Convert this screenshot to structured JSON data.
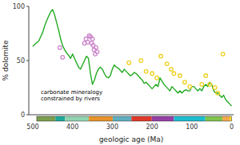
{
  "chart_data": {
    "type": "line",
    "xlabel": "geologic age (Ma)",
    "ylabel": "% dolomite",
    "xlim": [
      510,
      -5
    ],
    "ylim": [
      0,
      100
    ],
    "xticks": [
      500,
      400,
      300,
      200,
      100,
      0
    ],
    "yticks": [
      0,
      50,
      100
    ],
    "grid": false,
    "series": [
      {
        "type": "line",
        "color": "#22aa22",
        "x": [
          500,
          492,
          485,
          480,
          475,
          470,
          465,
          460,
          455,
          450,
          445,
          440,
          435,
          430,
          425,
          420,
          415,
          410,
          405,
          400,
          395,
          390,
          385,
          380,
          375,
          370,
          365,
          360,
          355,
          350,
          345,
          340,
          335,
          330,
          325,
          320,
          315,
          310,
          305,
          300,
          295,
          290,
          285,
          280,
          275,
          270,
          265,
          260,
          255,
          250,
          245,
          240,
          235,
          230,
          225,
          220,
          215,
          210,
          205,
          200,
          195,
          190,
          185,
          180,
          175,
          170,
          165,
          160,
          155,
          150,
          145,
          140,
          135,
          130,
          125,
          120,
          115,
          110,
          105,
          100,
          95,
          90,
          85,
          80,
          75,
          70,
          65,
          60,
          55,
          50,
          45,
          40,
          35,
          30,
          25,
          20,
          15,
          10,
          5,
          0
        ],
        "values": [
          63,
          66,
          68,
          72,
          76,
          82,
          87,
          91,
          95,
          97,
          92,
          85,
          78,
          70,
          64,
          60,
          57,
          55,
          52,
          56,
          52,
          48,
          44,
          42,
          46,
          50,
          54,
          52,
          38,
          28,
          32,
          38,
          42,
          44,
          42,
          38,
          35,
          34,
          36,
          42,
          46,
          44,
          43,
          41,
          39,
          42,
          40,
          38,
          36,
          37,
          39,
          38,
          36,
          34,
          32,
          29,
          30,
          28,
          26,
          24,
          26,
          28,
          26,
          34,
          31,
          28,
          26,
          24,
          22,
          26,
          24,
          22,
          20,
          22,
          20,
          22,
          23,
          22,
          22,
          26,
          26,
          24,
          22,
          24,
          22,
          26,
          28,
          26,
          30,
          28,
          22,
          20,
          20,
          18,
          16,
          18,
          14,
          12,
          10,
          8
        ]
      },
      {
        "type": "scatter",
        "marker": "ring",
        "color": "#cc88cc",
        "x": [
          432,
          425,
          370,
          366,
          362,
          358,
          355,
          352,
          350,
          348,
          346,
          343,
          341,
          338
        ],
        "values": [
          62,
          53,
          66,
          70,
          67,
          73,
          72,
          66,
          70,
          64,
          60,
          56,
          62,
          58
        ]
      },
      {
        "type": "scatter",
        "marker": "ring",
        "color": "#f0d020",
        "x": [
          258,
          228,
          215,
          200,
          188,
          178,
          163,
          152,
          145,
          130,
          118,
          105,
          75,
          65,
          55,
          42,
          35,
          22
        ],
        "values": [
          48,
          50,
          40,
          38,
          34,
          54,
          47,
          42,
          38,
          36,
          30,
          26,
          28,
          36,
          28,
          25,
          20,
          56
        ]
      }
    ],
    "annotations": [
      {
        "text": "carbonate mineralogy\nconstrained by rivers",
        "x": 480,
        "y": 18
      }
    ],
    "periods": [
      {
        "start": 490,
        "end": 443,
        "color": "#7d9e50"
      },
      {
        "start": 443,
        "end": 419,
        "color": "#1fa898"
      },
      {
        "start": 419,
        "end": 359,
        "color": "#92d4b2"
      },
      {
        "start": 359,
        "end": 299,
        "color": "#e8932b"
      },
      {
        "start": 299,
        "end": 252,
        "color": "#5fb0c0"
      },
      {
        "start": 252,
        "end": 201,
        "color": "#e0392a"
      },
      {
        "start": 201,
        "end": 145,
        "color": "#9540a6"
      },
      {
        "start": 145,
        "end": 66,
        "color": "#1dbdce"
      },
      {
        "start": 66,
        "end": 23,
        "color": "#82c44e"
      },
      {
        "start": 23,
        "end": 5,
        "color": "#f6a84e"
      },
      {
        "start": 5,
        "end": 0,
        "color": "#f5d535"
      }
    ]
  }
}
